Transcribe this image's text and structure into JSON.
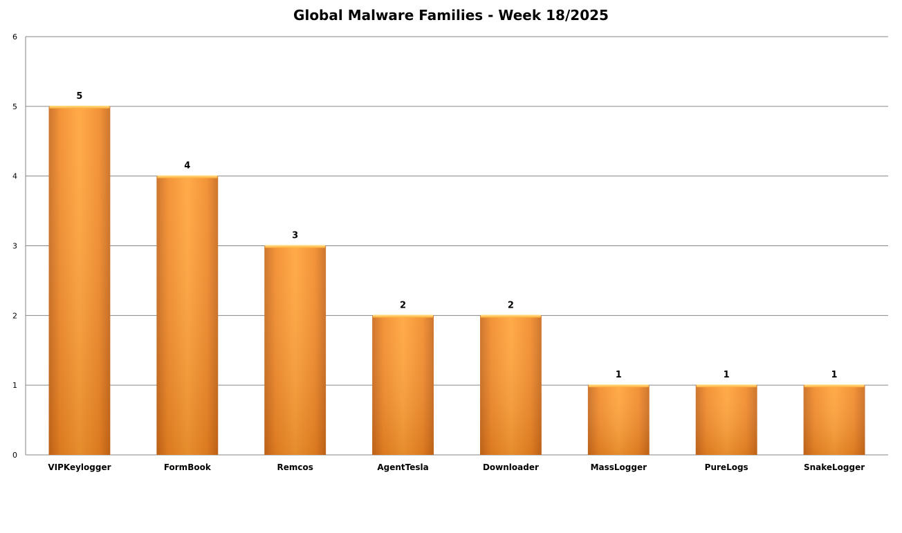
{
  "chart_data": {
    "type": "bar",
    "title": "Global Malware Families - Week 18/2025",
    "xlabel": "",
    "ylabel": "",
    "categories": [
      "VIPKeylogger",
      "FormBook",
      "Remcos",
      "AgentTesla",
      "Downloader",
      "MassLogger",
      "PureLogs",
      "SnakeLogger"
    ],
    "values": [
      5,
      4,
      3,
      2,
      2,
      1,
      1,
      1
    ],
    "ylim": [
      0,
      6
    ],
    "yticks": [
      "0",
      "1",
      "2",
      "3",
      "4",
      "5",
      "6"
    ],
    "grid": true,
    "legend": "none",
    "data_labels": true,
    "colors": {
      "bar_light": "#ffa236",
      "bar_dark": "#d9731f",
      "bar_top": "#ffd066",
      "grid": "#868686"
    }
  }
}
